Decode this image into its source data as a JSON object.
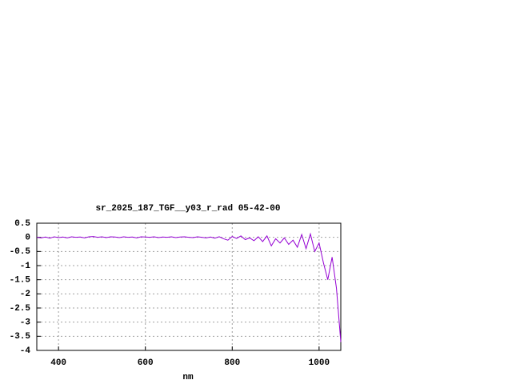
{
  "chart_data": {
    "type": "line",
    "title": "sr_2025_187_TGF__y03_r_rad 05-42-00",
    "x_label": "nm",
    "color": "#9400d3",
    "grid": true,
    "xlim": [
      350,
      1050
    ],
    "xticks": [
      400,
      600,
      800,
      1000
    ],
    "ylim": [
      -4,
      0.5
    ],
    "yticks": [
      0.5,
      0,
      -0.5,
      -1,
      -1.5,
      -2,
      -2.5,
      -3,
      -3.5,
      -4
    ],
    "x": [
      350,
      360,
      370,
      380,
      390,
      400,
      410,
      420,
      430,
      440,
      450,
      460,
      470,
      480,
      490,
      500,
      510,
      520,
      530,
      540,
      550,
      560,
      570,
      580,
      590,
      600,
      610,
      620,
      630,
      640,
      650,
      660,
      670,
      680,
      690,
      700,
      710,
      720,
      730,
      740,
      750,
      760,
      770,
      780,
      790,
      800,
      810,
      820,
      830,
      840,
      850,
      860,
      870,
      880,
      890,
      900,
      910,
      920,
      930,
      940,
      950,
      960,
      970,
      980,
      990,
      1000,
      1010,
      1020,
      1030,
      1040,
      1050
    ],
    "values": [
      0,
      -0.02,
      0.01,
      -0.03,
      0.02,
      -0.01,
      0.01,
      -0.02,
      0.02,
      0,
      0.01,
      -0.02,
      0.02,
      0.03,
      0,
      0.02,
      -0.01,
      0.02,
      0.01,
      -0.01,
      0.02,
      0,
      0.01,
      -0.02,
      0.02,
      0.01,
      0,
      0.02,
      -0.01,
      0.01,
      0,
      0.02,
      -0.01,
      0.01,
      0.02,
      0,
      -0.01,
      0.02,
      0,
      -0.02,
      0.01,
      -0.03,
      0.02,
      -0.05,
      -0.1,
      0.03,
      -0.04,
      0.05,
      -0.08,
      -0.02,
      -0.12,
      0.02,
      -0.15,
      0.05,
      -0.3,
      -0.05,
      -0.2,
      -0.02,
      -0.25,
      -0.1,
      -0.35,
      0.1,
      -0.4,
      0.12,
      -0.5,
      -0.2,
      -0.9,
      -1.5,
      -0.7,
      -1.8,
      -3.7
    ]
  }
}
